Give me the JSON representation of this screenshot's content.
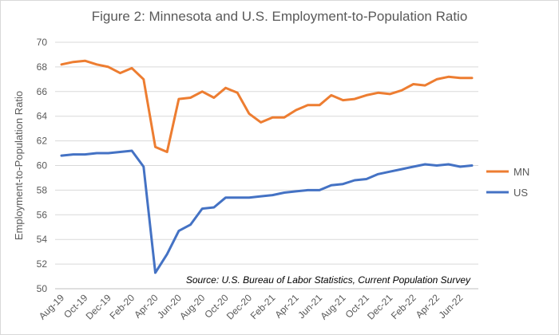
{
  "chart_data": {
    "type": "line",
    "title": "Figure 2:  Minnesota and U.S. Employment-to-Population Ratio",
    "xlabel": "",
    "ylabel": "Employment-to-Population Ratio",
    "ylim": [
      50,
      70
    ],
    "yticks": [
      "50",
      "52",
      "54",
      "56",
      "58",
      "60",
      "62",
      "64",
      "66",
      "68",
      "70"
    ],
    "grid": true,
    "legend_position": "right",
    "source_note": "Source: U.S. Bureau of Labor Statistics, Current Population Survey",
    "x": [
      "Aug-19",
      "Sep-19",
      "Oct-19",
      "Nov-19",
      "Dec-19",
      "Jan-20",
      "Feb-20",
      "Mar-20",
      "Apr-20",
      "May-20",
      "Jun-20",
      "Jul-20",
      "Aug-20",
      "Sep-20",
      "Oct-20",
      "Nov-20",
      "Dec-20",
      "Jan-21",
      "Feb-21",
      "Mar-21",
      "Apr-21",
      "May-21",
      "Jun-21",
      "Jul-21",
      "Aug-21",
      "Sep-21",
      "Oct-21",
      "Nov-21",
      "Dec-21",
      "Jan-22",
      "Feb-22",
      "Mar-22",
      "Apr-22",
      "May-22",
      "Jun-22",
      "Jul-22"
    ],
    "x_tick_labels": [
      "Aug-19",
      "Oct-19",
      "Dec-19",
      "Feb-20",
      "Apr-20",
      "Jun-20",
      "Aug-20",
      "Oct-20",
      "Dec-20",
      "Feb-21",
      "Apr-21",
      "Jun-21",
      "Aug-21",
      "Oct-21",
      "Dec-21",
      "Feb-22",
      "Apr-22",
      "Jun-22"
    ],
    "series": [
      {
        "name": "MN",
        "color": "#ED7D31",
        "values": [
          68.2,
          68.4,
          68.5,
          68.2,
          68.0,
          67.5,
          67.9,
          67.0,
          61.5,
          61.1,
          65.4,
          65.5,
          66.0,
          65.5,
          66.3,
          65.9,
          64.2,
          63.5,
          63.9,
          63.9,
          64.5,
          64.9,
          64.9,
          65.7,
          65.3,
          65.4,
          65.7,
          65.9,
          65.8,
          66.1,
          66.6,
          66.5,
          67.0,
          67.2,
          67.1,
          67.1
        ]
      },
      {
        "name": "US",
        "color": "#4472C4",
        "values": [
          60.8,
          60.9,
          60.9,
          61.0,
          61.0,
          61.1,
          61.2,
          59.9,
          51.3,
          52.8,
          54.7,
          55.2,
          56.5,
          56.6,
          57.4,
          57.4,
          57.4,
          57.5,
          57.6,
          57.8,
          57.9,
          58.0,
          58.0,
          58.4,
          58.5,
          58.8,
          58.9,
          59.3,
          59.5,
          59.7,
          59.9,
          60.1,
          60.0,
          60.1,
          59.9,
          60.0
        ]
      }
    ]
  }
}
